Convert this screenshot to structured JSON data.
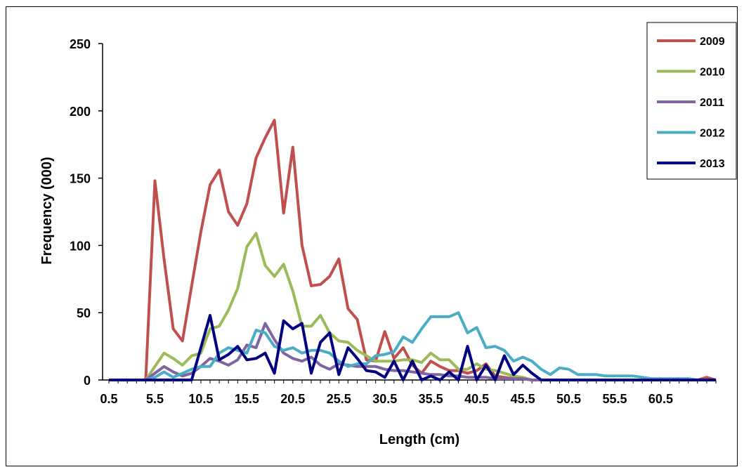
{
  "chart_data": {
    "type": "line",
    "title": "",
    "xlabel": "Length (cm)",
    "ylabel": "Frequency (000)",
    "ylim": [
      0,
      250
    ],
    "yticks": [
      "0",
      "50",
      "100",
      "150",
      "200",
      "250"
    ],
    "xlim": [
      0.5,
      66.5
    ],
    "x_tick_labels": [
      "0.5",
      "5.5",
      "10.5",
      "15.5",
      "20.5",
      "25.5",
      "30.5",
      "35.5",
      "40.5",
      "45.5",
      "50.5",
      "55.5",
      "60.5"
    ],
    "x_tick_values": [
      0.5,
      5.5,
      10.5,
      15.5,
      20.5,
      25.5,
      30.5,
      35.5,
      40.5,
      45.5,
      50.5,
      55.5,
      60.5
    ],
    "legend_position": "top-right",
    "grid": false,
    "x": [
      0.5,
      1.5,
      2.5,
      3.5,
      4.5,
      5.5,
      6.5,
      7.5,
      8.5,
      9.5,
      10.5,
      11.5,
      12.5,
      13.5,
      14.5,
      15.5,
      16.5,
      17.5,
      18.5,
      19.5,
      20.5,
      21.5,
      22.5,
      23.5,
      24.5,
      25.5,
      26.5,
      27.5,
      28.5,
      29.5,
      30.5,
      31.5,
      32.5,
      33.5,
      34.5,
      35.5,
      36.5,
      37.5,
      38.5,
      39.5,
      40.5,
      41.5,
      42.5,
      43.5,
      44.5,
      45.5,
      46.5,
      47.5,
      48.5,
      49.5,
      50.5,
      51.5,
      52.5,
      53.5,
      54.5,
      55.5,
      56.5,
      57.5,
      58.5,
      59.5,
      60.5,
      61.5,
      62.5,
      63.5,
      64.5,
      65.5,
      66.5
    ],
    "series": [
      {
        "name": "2009",
        "color": "#c0504d",
        "values": [
          0,
          0,
          0,
          0,
          0,
          148,
          90,
          38,
          29,
          70,
          110,
          145,
          156,
          125,
          115,
          131,
          165,
          180,
          193,
          124,
          173,
          100,
          70,
          71,
          77,
          90,
          53,
          45,
          15,
          14,
          36,
          16,
          24,
          11,
          5,
          14,
          10,
          7,
          7,
          5,
          7,
          12,
          3,
          2,
          1,
          1,
          0,
          0,
          0,
          0,
          0,
          0,
          0,
          0,
          0,
          0,
          0,
          0,
          0,
          0,
          0,
          0,
          0,
          0,
          0,
          2,
          0
        ]
      },
      {
        "name": "2010",
        "color": "#9bbb59",
        "values": [
          0,
          0,
          0,
          0,
          0,
          10,
          20,
          16,
          11,
          18,
          20,
          38,
          40,
          52,
          68,
          99,
          109,
          85,
          77,
          86,
          66,
          40,
          40,
          48,
          35,
          29,
          28,
          22,
          18,
          14,
          14,
          14,
          15,
          15,
          13,
          20,
          15,
          15,
          8,
          8,
          12,
          8,
          7,
          5,
          3,
          2,
          0,
          0,
          0,
          0,
          0,
          0,
          0,
          0,
          0,
          0,
          0,
          0,
          0,
          0,
          0,
          0,
          0,
          0,
          0,
          0,
          0
        ]
      },
      {
        "name": "2011",
        "color": "#8064a2",
        "values": [
          0,
          0,
          0,
          0,
          0,
          5,
          10,
          6,
          3,
          5,
          10,
          16,
          14,
          11,
          15,
          26,
          24,
          42,
          30,
          20,
          16,
          14,
          17,
          11,
          8,
          12,
          11,
          10,
          10,
          10,
          8,
          7,
          7,
          6,
          5,
          4,
          4,
          3,
          3,
          2,
          2,
          2,
          1,
          1,
          1,
          1,
          0,
          0,
          0,
          0,
          0,
          0,
          0,
          0,
          0,
          0,
          0,
          0,
          0,
          0,
          0,
          0,
          0,
          0,
          0,
          0,
          0
        ]
      },
      {
        "name": "2012",
        "color": "#4bacc6",
        "values": [
          0,
          0,
          0,
          0,
          0,
          2,
          6,
          2,
          5,
          8,
          10,
          10,
          20,
          24,
          22,
          20,
          37,
          35,
          25,
          22,
          24,
          20,
          22,
          22,
          20,
          14,
          10,
          12,
          12,
          18,
          19,
          21,
          32,
          28,
          38,
          47,
          47,
          47,
          50,
          35,
          39,
          24,
          25,
          22,
          14,
          17,
          14,
          8,
          4,
          9,
          8,
          4,
          4,
          4,
          3,
          3,
          3,
          3,
          2,
          1,
          1,
          1,
          1,
          1,
          0,
          0,
          0
        ]
      },
      {
        "name": "2013",
        "color": "#000080",
        "values": [
          0,
          0,
          0,
          0,
          0,
          0,
          0,
          0,
          0,
          0,
          24,
          48,
          15,
          19,
          25,
          15,
          16,
          20,
          5,
          44,
          38,
          42,
          5,
          28,
          35,
          4,
          24,
          16,
          7,
          6,
          2,
          14,
          0,
          14,
          0,
          3,
          0,
          6,
          0,
          25,
          0,
          11,
          0,
          18,
          4,
          11,
          5,
          0,
          0,
          0,
          0,
          0,
          0,
          0,
          0,
          0,
          0,
          0,
          0,
          0,
          0,
          0,
          0,
          0,
          0,
          0,
          0
        ]
      }
    ]
  }
}
